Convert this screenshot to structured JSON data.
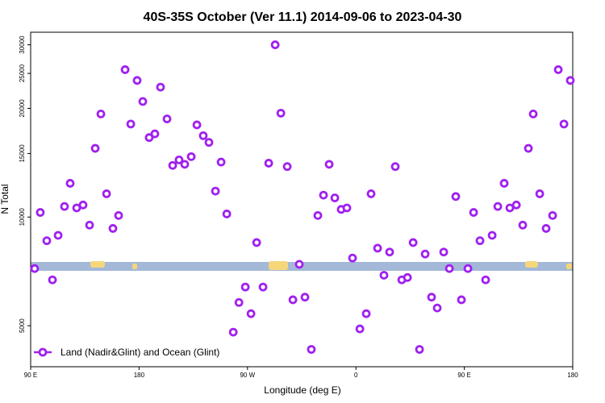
{
  "chart_data": {
    "type": "scatter",
    "title": "40S-35S October (Ver 11.1)   2014-09-06 to 2023-04-30",
    "x_label": "Longitude (deg E)",
    "y_label": "N Total",
    "log_y": true,
    "legend": "bottom-left",
    "xlim": [
      90,
      540
    ],
    "ylim": [
      3850,
      32500
    ],
    "xticks": [
      {
        "value": 90,
        "label": "90 E"
      },
      {
        "value": 180,
        "label": "180"
      },
      {
        "value": 270,
        "label": "90 W"
      },
      {
        "value": 360,
        "label": "0"
      },
      {
        "value": 450,
        "label": "90 E"
      },
      {
        "value": 540,
        "label": "180"
      }
    ],
    "yticks": [
      5000,
      10000,
      15000,
      20000,
      25000,
      30000
    ],
    "x": [
      93.3,
      98,
      103.4,
      108.1,
      112.8,
      118.1,
      122.8,
      128.2,
      133.5,
      138.9,
      143.6,
      148.3,
      153,
      158.3,
      163,
      168.4,
      173.1,
      178.4,
      183.1,
      188.4,
      193.1,
      197.8,
      203.2,
      207.9,
      213.2,
      217.9,
      223.3,
      228,
      233.3,
      238,
      243.4,
      248.1,
      252.8,
      258.2,
      262.9,
      268.2,
      272.9,
      277.6,
      282.9,
      287.6,
      293,
      297.7,
      303,
      307.7,
      313,
      317.7,
      323,
      328.4,
      333.1,
      337.8,
      342.5,
      347.8,
      352.5,
      357.2,
      363.3,
      368.6,
      372.6,
      378,
      383.3,
      388,
      392.7,
      398.1,
      402.8,
      407.5,
      412.8,
      417.5,
      422.8,
      427.5,
      432.9,
      437.6,
      442.9,
      447.6,
      453,
      457.7,
      463,
      467.7,
      473.1,
      477.8,
      483.1,
      487.8,
      493.2,
      498.5,
      503.2,
      507.2,
      512.6,
      517.9,
      523.3,
      528,
      532.7,
      538
    ],
    "series": [
      {
        "name": "Land (Nadir&Glint) and Ocean (Glint)",
        "color": "#a020f0",
        "values": [
          7200,
          10300,
          8600,
          6700,
          8900,
          10700,
          12400,
          10600,
          10800,
          9500,
          15500,
          19300,
          11600,
          9300,
          10100,
          25600,
          18100,
          23900,
          20900,
          16600,
          17000,
          22900,
          18700,
          13900,
          14400,
          14000,
          14700,
          18000,
          16800,
          16100,
          11800,
          14200,
          10200,
          4800,
          5800,
          6400,
          5400,
          8500,
          6400,
          14100,
          30000,
          19400,
          13800,
          5900,
          7400,
          6000,
          4300,
          10100,
          11500,
          14000,
          11300,
          10500,
          10600,
          7700,
          4900,
          5400,
          11600,
          8200,
          6900,
          8000,
          13800,
          6700,
          6800,
          8500,
          4300,
          7900,
          6000,
          5600,
          8000,
          7200,
          11400,
          5900,
          7200,
          10300,
          8600,
          6700,
          8900,
          10700,
          12400,
          10600,
          10800,
          9500,
          15500,
          19300,
          11600,
          9300,
          10100,
          25600,
          18100,
          23900
        ]
      }
    ]
  }
}
